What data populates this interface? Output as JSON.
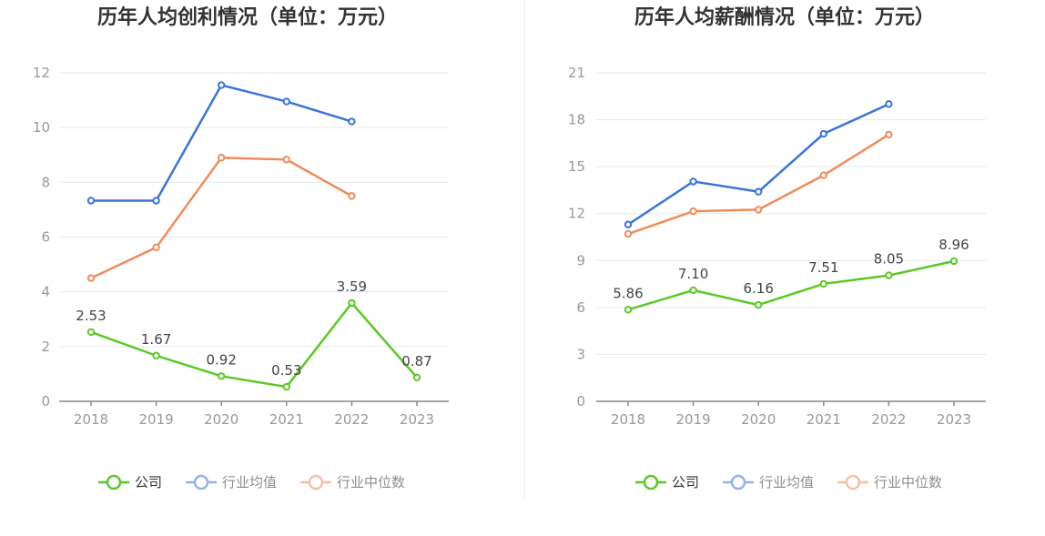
{
  "colors": {
    "company": "#5cc828",
    "industry_avg": "#3b74d8",
    "industry_median": "#ef8c5c"
  },
  "legend": {
    "company": "公司",
    "industry_avg": "行业均值",
    "industry_median": "行业中位数"
  },
  "chart_data": [
    {
      "type": "line",
      "title": "历年人均创利情况（单位：万元）",
      "categories": [
        "2018",
        "2019",
        "2020",
        "2021",
        "2022",
        "2023"
      ],
      "ylim": [
        0,
        12
      ],
      "yticks": [
        0,
        2,
        4,
        6,
        8,
        10,
        12
      ],
      "grid": true,
      "legend_position": "bottom",
      "series": [
        {
          "name": "公司",
          "key": "company",
          "values": [
            2.53,
            1.67,
            0.92,
            0.53,
            3.59,
            0.87
          ],
          "labels": [
            "2.53",
            "1.67",
            "0.92",
            "0.53",
            "3.59",
            "0.87"
          ]
        },
        {
          "name": "行业均值",
          "key": "industry_avg",
          "values": [
            7.33,
            7.33,
            11.55,
            10.95,
            10.22,
            null
          ]
        },
        {
          "name": "行业中位数",
          "key": "industry_median",
          "values": [
            4.5,
            5.62,
            8.9,
            8.83,
            7.5,
            null
          ]
        }
      ]
    },
    {
      "type": "line",
      "title": "历年人均薪酬情况（单位：万元）",
      "categories": [
        "2018",
        "2019",
        "2020",
        "2021",
        "2022",
        "2023"
      ],
      "ylim": [
        0,
        21
      ],
      "yticks": [
        0,
        3,
        6,
        9,
        12,
        15,
        18,
        21
      ],
      "grid": true,
      "legend_position": "bottom",
      "series": [
        {
          "name": "公司",
          "key": "company",
          "values": [
            5.86,
            7.1,
            6.16,
            7.51,
            8.05,
            8.96
          ],
          "labels": [
            "5.86",
            "7.10",
            "6.16",
            "7.51",
            "8.05",
            "8.96"
          ]
        },
        {
          "name": "行业均值",
          "key": "industry_avg",
          "values": [
            11.3,
            14.05,
            13.4,
            17.1,
            19.0,
            null
          ]
        },
        {
          "name": "行业中位数",
          "key": "industry_median",
          "values": [
            10.7,
            12.15,
            12.25,
            14.45,
            17.05,
            null
          ]
        }
      ]
    }
  ]
}
